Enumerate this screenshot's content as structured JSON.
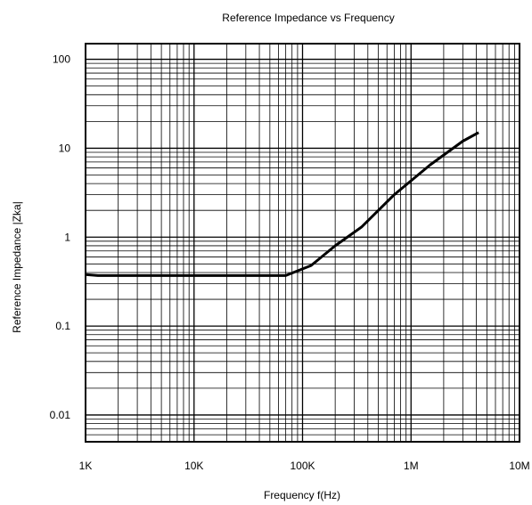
{
  "chart_data": {
    "type": "line",
    "title": "Reference Impedance vs Frequency",
    "xlabel": "Frequency f(Hz)",
    "ylabel": "Reference Impedance  |Zka|",
    "x_scale": "log",
    "y_scale": "log",
    "xlim": [
      1000,
      10000000
    ],
    "ylim": [
      0.005,
      150
    ],
    "x_ticks": [
      1000,
      10000,
      100000,
      1000000,
      10000000
    ],
    "x_tick_labels": [
      "1K",
      "10K",
      "100K",
      "1M",
      "10M"
    ],
    "y_ticks": [
      0.01,
      0.1,
      1,
      10,
      100
    ],
    "y_tick_labels": [
      "0.01",
      "0.1",
      "1",
      "10",
      "100"
    ],
    "grid": true,
    "legend": "none",
    "series": [
      {
        "color": "#000000",
        "x": [
          1000,
          1300,
          2000,
          5000,
          10000,
          30000,
          70000,
          120000,
          200000,
          350000,
          700000,
          1500000,
          3000000,
          4200000
        ],
        "y": [
          0.38,
          0.37,
          0.37,
          0.37,
          0.37,
          0.37,
          0.37,
          0.48,
          0.8,
          1.3,
          3.0,
          6.5,
          12,
          15
        ]
      }
    ]
  }
}
